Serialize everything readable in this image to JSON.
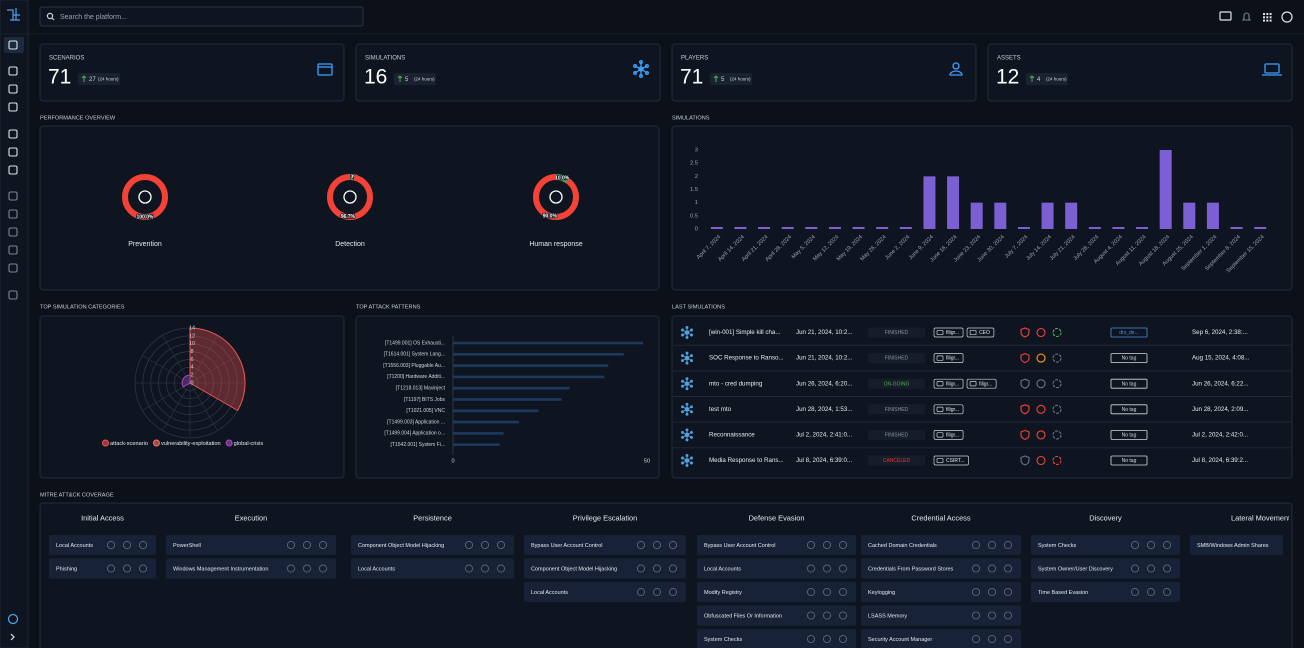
{
  "search": {
    "placeholder": "Search the platform..."
  },
  "kpis": [
    {
      "label": "SCENARIOS",
      "value": 71,
      "delta": 27,
      "period": "(24 hours)"
    },
    {
      "label": "SIMULATIONS",
      "value": 16,
      "delta": 5,
      "period": "(24 hours)"
    },
    {
      "label": "PLAYERS",
      "value": 71,
      "delta": 5,
      "period": "(24 hours)"
    },
    {
      "label": "ASSETS",
      "value": 12,
      "delta": 4,
      "period": "(24 hours)"
    }
  ],
  "chart_data": [
    {
      "type": "gauge",
      "title": "PERFORMANCE OVERVIEW",
      "series": [
        {
          "name": "Prevention",
          "values": [
            100
          ],
          "value_labels": [
            "100.0%"
          ],
          "colors": [
            "#f44336"
          ]
        },
        {
          "name": "Detection",
          "values": [
            3.3,
            96.7
          ],
          "value_labels": [
            "3.3%",
            "96.7%"
          ],
          "colors": [
            "#4caf50",
            "#f44336"
          ]
        },
        {
          "name": "Human response",
          "values": [
            10,
            90
          ],
          "value_labels": [
            "10.0%",
            "90.0%"
          ],
          "colors": [
            "#4caf50",
            "#f44336"
          ]
        }
      ]
    },
    {
      "type": "bar",
      "title": "SIMULATIONS",
      "categories": [
        "April 7, 2024",
        "April 14, 2024",
        "April 21, 2024",
        "April 28, 2024",
        "May 5, 2024",
        "May 12, 2024",
        "May 19, 2024",
        "May 26, 2024",
        "June 2, 2024",
        "June 9, 2024",
        "June 16, 2024",
        "June 23, 2024",
        "June 30, 2024",
        "July 7, 2024",
        "July 14, 2024",
        "July 21, 2024",
        "July 28, 2024",
        "August 4, 2024",
        "August 11, 2024",
        "August 18, 2024",
        "August 25, 2024",
        "September 1, 2024",
        "September 8, 2024",
        "September 15, 2024"
      ],
      "values": [
        0,
        0,
        0,
        0,
        0,
        0,
        0,
        0,
        0,
        2,
        2,
        1,
        1,
        0,
        1,
        1,
        0,
        0,
        0,
        3,
        1,
        1,
        0,
        0
      ],
      "color": "#7b5fd3",
      "ylim": [
        0,
        3
      ],
      "yticks": [
        0,
        0.5,
        1,
        1.5,
        2,
        2.5,
        3
      ],
      "grid": false
    },
    {
      "type": "polar",
      "title": "TOP SIMULATION CATEGORIES",
      "categories": [
        "attack-scenario",
        "vulnerability-exploitation",
        "global-crisis"
      ],
      "values": [
        14,
        0,
        2
      ],
      "colors": [
        "#ef5350",
        "#ff6f61",
        "#ab47bc"
      ],
      "ylim": [
        0,
        14
      ],
      "yticks": [
        0,
        2,
        4,
        6,
        8,
        10,
        12,
        14
      ]
    },
    {
      "type": "hbar",
      "title": "TOP ATTACK PATTERNS",
      "categories": [
        "[T1499.001] OS Exhausti...",
        "[T1614.001] System Lang...",
        "[T1556.003] Pluggable Au...",
        "[T1200] Hardware Additi...",
        "[T1218.013] Mavinject",
        "[T1197] BITS Jobs",
        "[T1021.005] VNC",
        "[T1499.003] Application ...",
        "[T1499.004] Application o...",
        "[T1542.001] System Fi..."
      ],
      "values": [
        49,
        44,
        40,
        39,
        30,
        28,
        22,
        17,
        13,
        12
      ],
      "color": "#1c3a5e",
      "xlim": [
        0,
        50
      ],
      "xticks": [
        0,
        50
      ]
    }
  ],
  "last_simulations": {
    "title": "LAST SIMULATIONS",
    "rows": [
      {
        "name": "[win-001] Simple kill cha...",
        "start": "Jun 21, 2024, 10:2...",
        "status": "FINISHED",
        "status_color": "#8a93a3",
        "targets": [
          "filigr...",
          "CEO"
        ],
        "result_colors": [
          "#f44336",
          "#f44336",
          "#4caf50"
        ],
        "tag": "drs_de...",
        "tag_color": "#4f8fe0",
        "end": "Sep 6, 2024, 2:38:..."
      },
      {
        "name": "SOC Response to Ranso...",
        "start": "Jun 21, 2024, 10:2...",
        "status": "FINISHED",
        "status_color": "#8a93a3",
        "targets": [
          "filigr..."
        ],
        "result_colors": [
          "#f44336",
          "#ff9800",
          "#6b7383"
        ],
        "tag": "No tag",
        "tag_color": "#d6d9df",
        "end": "Aug 15, 2024, 4:08..."
      },
      {
        "name": "mto - cred dumping",
        "start": "Jun 26, 2024, 6:20...",
        "status": "ON-GOING",
        "status_color": "#4caf50",
        "targets": [
          "filigr...",
          "filigr..."
        ],
        "result_colors": [
          "#6b7383",
          "#6b7383",
          "#6b7383"
        ],
        "tag": "No tag",
        "tag_color": "#d6d9df",
        "end": "Jun 26, 2024, 6:22..."
      },
      {
        "name": "test mto",
        "start": "Jun 28, 2024, 1:53...",
        "status": "FINISHED",
        "status_color": "#8a93a3",
        "targets": [
          "filigr..."
        ],
        "result_colors": [
          "#f44336",
          "#f44336",
          "#6b7383"
        ],
        "tag": "No tag",
        "tag_color": "#d6d9df",
        "end": "Jun 28, 2024, 2:09..."
      },
      {
        "name": "Reconnaissance",
        "start": "Jul 2, 2024, 2:41:0...",
        "status": "FINISHED",
        "status_color": "#8a93a3",
        "targets": [
          "filigr..."
        ],
        "result_colors": [
          "#f44336",
          "#f44336",
          "#6b7383"
        ],
        "tag": "No tag",
        "tag_color": "#d6d9df",
        "end": "Jul 2, 2024, 2:42:0..."
      },
      {
        "name": "Media Response to Rans...",
        "start": "Jul 8, 2024, 6:39:0...",
        "status": "CANCELED",
        "status_color": "#e53935",
        "targets": [
          "CSIRT..."
        ],
        "result_colors": [
          "#6b7383",
          "#f44336",
          "#f44336"
        ],
        "tag": "No tag",
        "tag_color": "#d6d9df",
        "end": "Jul 8, 2024, 6:39:2..."
      }
    ]
  },
  "mitre": {
    "title": "MITRE ATT&CK COVERAGE",
    "tactics": [
      {
        "name": "Initial Access",
        "techniques": [
          "Local Accounts",
          "Phishing"
        ]
      },
      {
        "name": "Execution",
        "techniques": [
          "PowerShell",
          "Windows Management Instrumentation"
        ]
      },
      {
        "name": "Persistence",
        "techniques": [
          "Component Object Model Hijacking",
          "Local Accounts"
        ]
      },
      {
        "name": "Privilege Escalation",
        "techniques": [
          "Bypass User Account Control",
          "Component Object Model Hijacking",
          "Local Accounts"
        ]
      },
      {
        "name": "Defense Evasion",
        "techniques": [
          "Bypass User Account Control",
          "Local Accounts",
          "Modify Registry",
          "Obfuscated Files Or Information",
          "System Checks"
        ]
      },
      {
        "name": "Credential Access",
        "techniques": [
          "Cached Domain Credentials",
          "Credentials From Password Stores",
          "Keylogging",
          "LSASS Memory",
          "Security Account Manager"
        ]
      },
      {
        "name": "Discovery",
        "techniques": [
          "System Checks",
          "System Owner/User Discovery",
          "Time Based Evasion"
        ]
      },
      {
        "name": "Lateral Movement",
        "techniques": [
          "SMB/Windows Admin Shares"
        ]
      }
    ]
  }
}
